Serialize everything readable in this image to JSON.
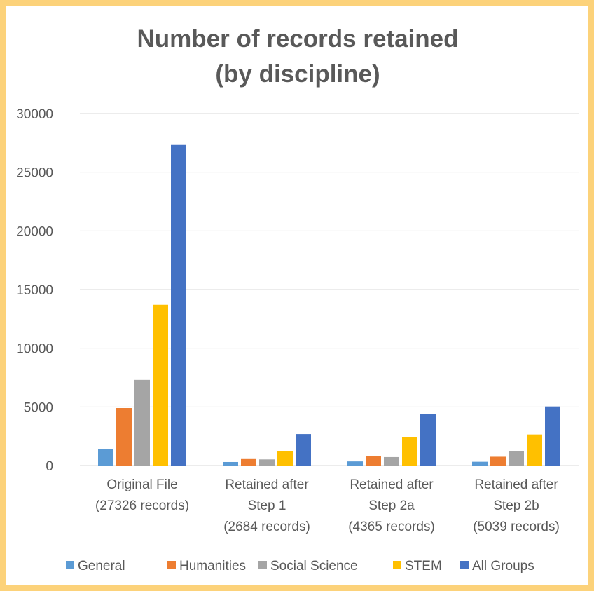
{
  "chart_data": {
    "type": "bar",
    "title": [
      "Number of records retained",
      "(by discipline)"
    ],
    "xlabel": "",
    "ylabel": "",
    "ylim": [
      0,
      30000
    ],
    "yticks": [
      "0",
      "5000",
      "10000",
      "15000",
      "20000",
      "25000",
      "30000"
    ],
    "grid": true,
    "legend_position": "bottom",
    "categories": [
      [
        "Original File",
        "(27326 records)"
      ],
      [
        "Retained after",
        "Step 1",
        "(2684 records)"
      ],
      [
        "Retained after",
        "Step 2a",
        "(4365 records)"
      ],
      [
        "Retained after",
        "Step 2b",
        "(5039 records)"
      ]
    ],
    "series": [
      {
        "name": "General",
        "color": "#5B9BD5",
        "values": [
          1400,
          300,
          350,
          320
        ]
      },
      {
        "name": "Humanities",
        "color": "#ED7D31",
        "values": [
          4900,
          550,
          800,
          750
        ]
      },
      {
        "name": "Social Science",
        "color": "#A5A5A5",
        "values": [
          7300,
          520,
          720,
          1250
        ]
      },
      {
        "name": "STEM",
        "color": "#FFC000",
        "values": [
          13700,
          1250,
          2450,
          2650
        ]
      },
      {
        "name": "All Groups",
        "color": "#4472C4",
        "values": [
          27326,
          2684,
          4365,
          5039
        ]
      }
    ]
  }
}
